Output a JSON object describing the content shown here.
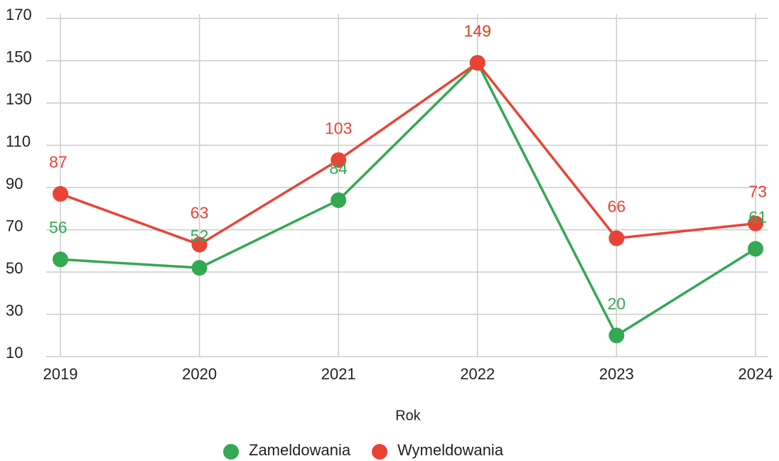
{
  "chart_data": {
    "type": "line",
    "categories": [
      "2019",
      "2020",
      "2021",
      "2022",
      "2023",
      "2024"
    ],
    "series": [
      {
        "name": "Zameldowania",
        "color": "#34a853",
        "values": [
          56,
          52,
          84,
          149,
          20,
          61
        ]
      },
      {
        "name": "Wymeldowania",
        "color": "#ea4335",
        "values": [
          87,
          63,
          103,
          149,
          66,
          73
        ]
      }
    ],
    "x_label": "Rok",
    "ylim": [
      10,
      170
    ],
    "yticks": [
      10,
      30,
      50,
      70,
      90,
      110,
      130,
      150,
      170
    ],
    "grid": true,
    "legend": "bottom"
  }
}
